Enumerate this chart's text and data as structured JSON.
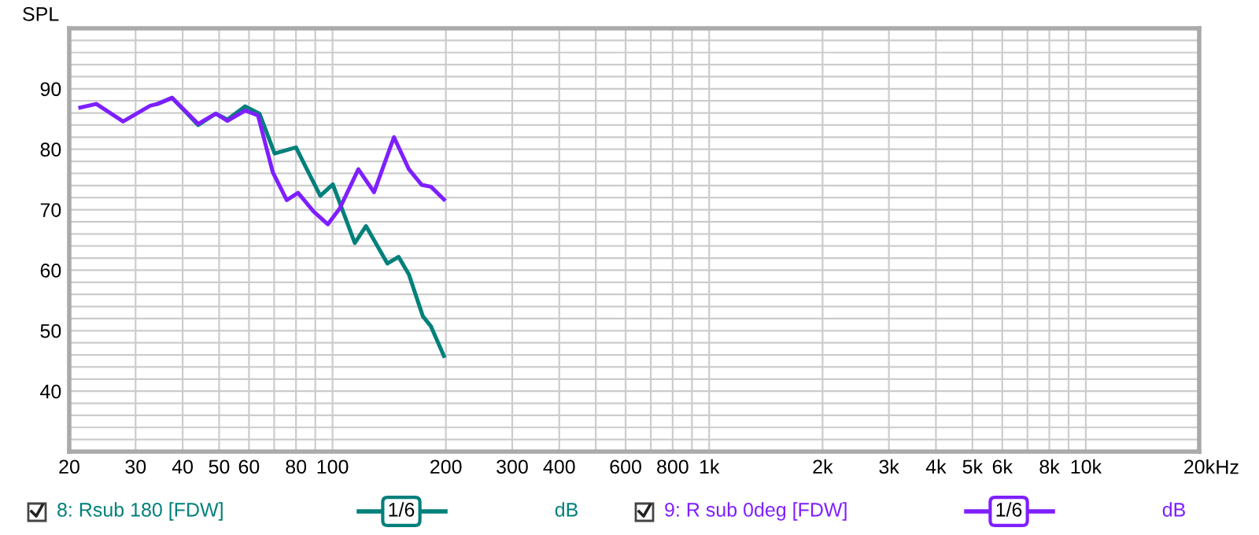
{
  "chart_data": {
    "type": "line",
    "ylabel": "SPL",
    "log": "x",
    "grid": true,
    "legend": "bottom",
    "marker": "none",
    "line_style": "solid",
    "xlim": [
      20,
      20000
    ],
    "ylim": [
      30,
      100
    ],
    "xticks": [
      20,
      30,
      40,
      50,
      60,
      {
        "value": 70,
        "label": null
      },
      80,
      {
        "value": 90,
        "label": null
      },
      100,
      200,
      300,
      400,
      {
        "value": 500,
        "label": null
      },
      600,
      {
        "value": 700,
        "label": null
      },
      800,
      {
        "value": 900,
        "label": null
      },
      {
        "value": 1000,
        "label": "1k"
      },
      {
        "value": 2000,
        "label": "2k"
      },
      {
        "value": 3000,
        "label": "3k"
      },
      {
        "value": 4000,
        "label": "4k"
      },
      {
        "value": 5000,
        "label": "5k"
      },
      {
        "value": 6000,
        "label": "6k"
      },
      {
        "value": 7000,
        "label": null
      },
      {
        "value": 8000,
        "label": "8k"
      },
      {
        "value": 9000,
        "label": null
      },
      {
        "value": 10000,
        "label": "10k"
      },
      {
        "value": 20000,
        "label": "20k"
      }
    ],
    "xlabel": "Hz",
    "yticks": [
      {
        "value": 30,
        "label": null
      },
      {
        "value": 32,
        "label": null
      },
      {
        "value": 34,
        "label": null
      },
      {
        "value": 36,
        "label": null
      },
      {
        "value": 38,
        "label": null
      },
      40,
      {
        "value": 42,
        "label": null
      },
      {
        "value": 44,
        "label": null
      },
      {
        "value": 46,
        "label": null
      },
      {
        "value": 48,
        "label": null
      },
      50,
      {
        "value": 52,
        "label": null
      },
      {
        "value": 54,
        "label": null
      },
      {
        "value": 56,
        "label": null
      },
      {
        "value": 58,
        "label": null
      },
      60,
      {
        "value": 62,
        "label": null
      },
      {
        "value": 64,
        "label": null
      },
      {
        "value": 66,
        "label": null
      },
      {
        "value": 68,
        "label": null
      },
      70,
      {
        "value": 72,
        "label": null
      },
      {
        "value": 74,
        "label": null
      },
      {
        "value": 76,
        "label": null
      },
      {
        "value": 78,
        "label": null
      },
      80,
      {
        "value": 82,
        "label": null
      },
      {
        "value": 84,
        "label": null
      },
      {
        "value": 86,
        "label": null
      },
      {
        "value": 88,
        "label": null
      },
      90,
      {
        "value": 92,
        "label": null
      },
      {
        "value": 94,
        "label": null
      },
      {
        "value": 96,
        "label": null
      },
      {
        "value": 98,
        "label": null
      },
      {
        "value": 100,
        "label": null
      }
    ],
    "annotations": [
      "1/6",
      "dB",
      "1/6",
      "dB"
    ],
    "series": [
      {
        "name": "8: Rsub 180 [FDW]",
        "color": "#00807a",
        "x": [
          34.3,
          37.5,
          44.0,
          49.0,
          52.6,
          58.6,
          64.0,
          70.2,
          80.0,
          85.5,
          92.8,
          100.2,
          114.6,
          122.7,
          139.9,
          149.8,
          159.5,
          173.7,
          182.6,
          197.6
        ],
        "values": [
          87.5,
          88.5,
          84.0,
          85.9,
          84.9,
          87.1,
          85.9,
          79.3,
          80.3,
          76.7,
          72.3,
          74.2,
          64.5,
          67.3,
          61.1,
          62.2,
          59.3,
          52.4,
          50.7,
          45.8
        ]
      },
      {
        "name": "9: R sub 0deg [FDW]",
        "color": "#7f1fff",
        "x": [
          21.4,
          23.6,
          27.8,
          32.8,
          34.3,
          37.5,
          44.0,
          49.0,
          52.6,
          58.6,
          63.4,
          69.4,
          75.6,
          81.0,
          89.1,
          97.2,
          104.5,
          117.1,
          128.9,
          145.6,
          159.5,
          172.6,
          182.6,
          197.6
        ],
        "values": [
          86.9,
          87.5,
          84.6,
          87.2,
          87.5,
          88.5,
          84.2,
          85.9,
          84.7,
          86.4,
          85.6,
          76.2,
          71.6,
          72.8,
          69.7,
          67.6,
          70.2,
          76.7,
          72.9,
          82.0,
          76.7,
          74.1,
          73.8,
          71.7
        ]
      }
    ]
  }
}
